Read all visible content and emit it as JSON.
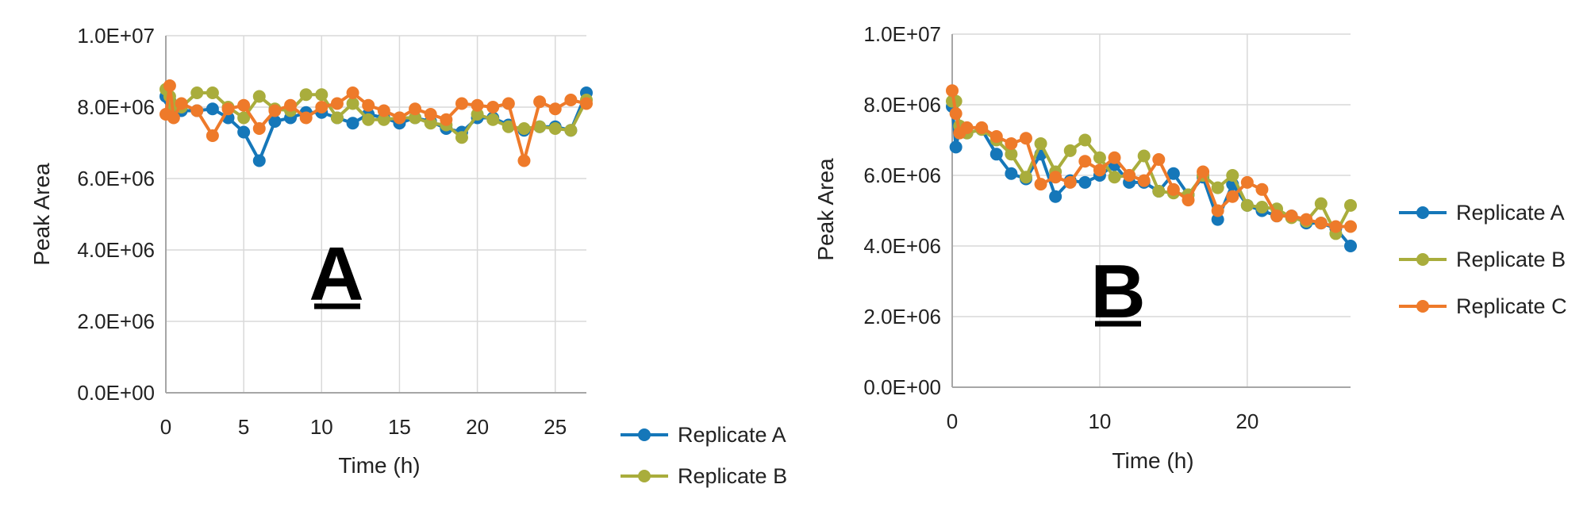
{
  "colors": {
    "Replicate A": "#1577b9",
    "Replicate B": "#a9ad3c",
    "Replicate C": "#ee7a2a",
    "grid": "#d9d9d9",
    "axis": "#a6a6a6"
  },
  "chart_data": [
    {
      "type": "line",
      "panel_label": "A",
      "xlabel": "Time (h)",
      "ylabel": "Peak Area",
      "xlim": [
        0,
        27
      ],
      "ylim": [
        0,
        10000000
      ],
      "xticks": [
        "0",
        "5",
        "10",
        "15",
        "20",
        "25"
      ],
      "xtick_values": [
        0,
        5,
        10,
        15,
        20,
        25
      ],
      "yticks": [
        "0.0E+00",
        "2.0E+06",
        "4.0E+06",
        "6.0E+06",
        "8.0E+06",
        "1.0E+07"
      ],
      "ytick_values": [
        0,
        2000000,
        4000000,
        6000000,
        8000000,
        10000000
      ],
      "grid": true,
      "legend_position": "bottom-right",
      "legend": [
        "Replicate A",
        "Replicate B"
      ],
      "series": [
        {
          "name": "Replicate A",
          "x": [
            0,
            0.25,
            0.5,
            1,
            2,
            3,
            4,
            5,
            6,
            7,
            8,
            9,
            10,
            11,
            12,
            13,
            14,
            15,
            16,
            17,
            18,
            19,
            20,
            21,
            22,
            23,
            24,
            25,
            26,
            27
          ],
          "y": [
            8300000,
            8200000,
            8000000,
            7900000,
            7900000,
            7950000,
            7700000,
            7300000,
            6500000,
            7600000,
            7700000,
            7850000,
            7850000,
            7700000,
            7550000,
            7800000,
            7700000,
            7550000,
            7700000,
            7600000,
            7400000,
            7300000,
            7700000,
            7700000,
            7500000,
            7350000,
            7450000,
            7450000,
            7350000,
            8400000
          ]
        },
        {
          "name": "Replicate B",
          "x": [
            0,
            0.25,
            0.5,
            1,
            2,
            3,
            4,
            5,
            6,
            7,
            8,
            9,
            10,
            11,
            12,
            13,
            14,
            15,
            16,
            17,
            18,
            19,
            20,
            21,
            22,
            23,
            24,
            25,
            26,
            27
          ],
          "y": [
            8500000,
            8300000,
            8050000,
            8000000,
            8400000,
            8400000,
            8000000,
            7700000,
            8300000,
            7950000,
            7900000,
            8350000,
            8350000,
            7700000,
            8100000,
            7650000,
            7650000,
            7700000,
            7700000,
            7550000,
            7500000,
            7150000,
            7800000,
            7650000,
            7450000,
            7400000,
            7450000,
            7400000,
            7350000,
            8200000
          ]
        },
        {
          "name": "Replicate C",
          "x": [
            0,
            0.25,
            0.5,
            1,
            2,
            3,
            4,
            5,
            6,
            7,
            8,
            9,
            10,
            11,
            12,
            13,
            14,
            15,
            16,
            17,
            18,
            19,
            20,
            21,
            22,
            23,
            24,
            25,
            26,
            27
          ],
          "y": [
            7800000,
            8600000,
            7700000,
            8100000,
            7900000,
            7200000,
            7950000,
            8050000,
            7400000,
            7900000,
            8050000,
            7700000,
            8000000,
            8100000,
            8400000,
            8050000,
            7900000,
            7700000,
            7950000,
            7800000,
            7650000,
            8100000,
            8050000,
            8000000,
            8100000,
            6500000,
            8150000,
            7950000,
            8200000,
            8100000
          ]
        }
      ]
    },
    {
      "type": "line",
      "panel_label": "B",
      "xlabel": "Time (h)",
      "ylabel": "Peak Area",
      "xlim": [
        0,
        27
      ],
      "ylim": [
        0,
        10000000
      ],
      "xticks": [
        "0",
        "10",
        "20"
      ],
      "xtick_values": [
        0,
        10,
        20
      ],
      "yticks": [
        "0.0E+00",
        "2.0E+06",
        "4.0E+06",
        "6.0E+06",
        "8.0E+06",
        "1.0E+07"
      ],
      "ytick_values": [
        0,
        2000000,
        4000000,
        6000000,
        8000000,
        10000000
      ],
      "grid": true,
      "legend_position": "right",
      "legend": [
        "Replicate A",
        "Replicate B",
        "Replicate C"
      ],
      "series": [
        {
          "name": "Replicate A",
          "x": [
            0,
            0.25,
            0.5,
            1,
            2,
            3,
            4,
            5,
            6,
            7,
            8,
            9,
            10,
            11,
            12,
            13,
            14,
            15,
            16,
            17,
            18,
            19,
            20,
            21,
            22,
            23,
            24,
            25,
            26,
            27
          ],
          "y": [
            7950000,
            6800000,
            7300000,
            7200000,
            7300000,
            6600000,
            6050000,
            5900000,
            6600000,
            5400000,
            5850000,
            5800000,
            6000000,
            6300000,
            5800000,
            5800000,
            5550000,
            6050000,
            5450000,
            5950000,
            4750000,
            5750000,
            5150000,
            5000000,
            4850000,
            4850000,
            4650000,
            4650000,
            4500000,
            4000000
          ]
        },
        {
          "name": "Replicate B",
          "x": [
            0,
            0.25,
            0.5,
            1,
            2,
            3,
            4,
            5,
            6,
            7,
            8,
            9,
            10,
            11,
            12,
            13,
            14,
            15,
            16,
            17,
            18,
            19,
            20,
            21,
            22,
            23,
            24,
            25,
            26,
            27
          ],
          "y": [
            8100000,
            8100000,
            7400000,
            7200000,
            7300000,
            7000000,
            6600000,
            5950000,
            6900000,
            6100000,
            6700000,
            7000000,
            6500000,
            5950000,
            6000000,
            6550000,
            5550000,
            5500000,
            5450000,
            6000000,
            5650000,
            6000000,
            5150000,
            5100000,
            5050000,
            4800000,
            4700000,
            5200000,
            4350000,
            5150000
          ]
        },
        {
          "name": "Replicate C",
          "x": [
            0,
            0.25,
            0.5,
            1,
            2,
            3,
            4,
            5,
            6,
            7,
            8,
            9,
            10,
            11,
            12,
            13,
            14,
            15,
            16,
            17,
            18,
            19,
            20,
            21,
            22,
            23,
            24,
            25,
            26,
            27
          ],
          "y": [
            8400000,
            7750000,
            7200000,
            7350000,
            7350000,
            7100000,
            6900000,
            7050000,
            5750000,
            5950000,
            5800000,
            6400000,
            6150000,
            6500000,
            6000000,
            5850000,
            6450000,
            5600000,
            5300000,
            6100000,
            5000000,
            5400000,
            5800000,
            5600000,
            4850000,
            4850000,
            4750000,
            4650000,
            4550000,
            4550000
          ]
        }
      ]
    }
  ]
}
